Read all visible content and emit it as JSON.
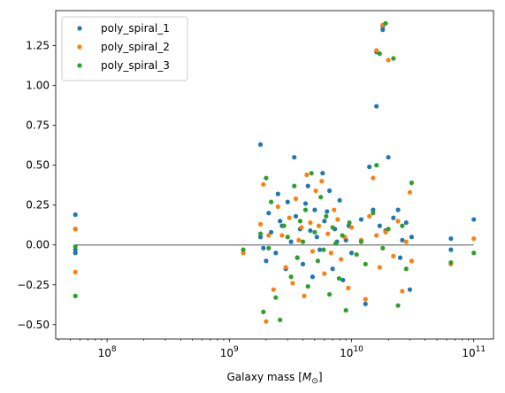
{
  "chart_data": {
    "type": "scatter",
    "title": "",
    "xlabel": "Galaxy mass [M_⊙]",
    "ylabel": "",
    "xscale": "log",
    "xlim": [
      38000000.0,
      145000000000.0
    ],
    "ylim": [
      -0.59,
      1.47
    ],
    "grid": false,
    "legend_position": "top-left",
    "reference_line": {
      "y": 0,
      "x_range": [
        55000000.0,
        100000000000.0
      ],
      "color": "#8c8c8c"
    },
    "x_ticks": [
      {
        "value": 100000000.0,
        "base": "10",
        "exp": "8"
      },
      {
        "value": 1000000000.0,
        "base": "10",
        "exp": "9"
      },
      {
        "value": 10000000000.0,
        "base": "10",
        "exp": "10"
      },
      {
        "value": 100000000000.0,
        "base": "10",
        "exp": "11"
      }
    ],
    "y_ticks": [
      {
        "value": -0.5,
        "label": "−0.50"
      },
      {
        "value": -0.25,
        "label": "−0.25"
      },
      {
        "value": 0.0,
        "label": "0.00"
      },
      {
        "value": 0.25,
        "label": "0.25"
      },
      {
        "value": 0.5,
        "label": "0.50"
      },
      {
        "value": 0.75,
        "label": "0.75"
      },
      {
        "value": 1.0,
        "label": "1.00"
      },
      {
        "value": 1.25,
        "label": "1.25"
      }
    ],
    "series": [
      {
        "name": "poly_spiral_1",
        "color": "#1f77b4",
        "x": [
          55000000.0,
          55000000.0,
          55000000.0,
          55000000.0,
          1800000000.0,
          1800000000.0,
          1900000000.0,
          2000000000.0,
          2100000000.0,
          2200000000.0,
          2400000000.0,
          2500000000.0,
          2600000000.0,
          2700000000.0,
          2900000000.0,
          3000000000.0,
          3200000000.0,
          3400000000.0,
          3500000000.0,
          3600000000.0,
          3800000000.0,
          4000000000.0,
          4200000000.0,
          4400000000.0,
          4600000000.0,
          4800000000.0,
          5000000000.0,
          5200000000.0,
          5500000000.0,
          5800000000.0,
          6000000000.0,
          6300000000.0,
          6600000000.0,
          7000000000.0,
          7300000000.0,
          7600000000.0,
          8000000000.0,
          8500000000.0,
          9000000000.0,
          9500000000.0,
          10000000000.0,
          12000000000.0,
          13000000000.0,
          14000000000.0,
          15000000000.0,
          16000000000.0,
          16000000000.0,
          17000000000.0,
          18000000000.0,
          18000000000.0,
          19000000000.0,
          20000000000.0,
          22000000000.0,
          24000000000.0,
          25000000000.0,
          26000000000.0,
          28000000000.0,
          30000000000.0,
          31000000000.0,
          65000000000.0,
          65000000000.0,
          100000000000.0
        ],
        "y": [
          0.19,
          0.1,
          -0.03,
          -0.05,
          0.63,
          0.05,
          -0.02,
          -0.1,
          0.2,
          0.08,
          -0.05,
          0.32,
          0.15,
          0.12,
          -0.15,
          0.27,
          0.02,
          0.55,
          0.18,
          -0.08,
          0.1,
          -0.12,
          0.26,
          0.37,
          0.09,
          -0.2,
          0.22,
          0.05,
          -0.03,
          0.45,
          0.15,
          0.21,
          0.34,
          -0.15,
          0.1,
          0.02,
          0.28,
          -0.22,
          0.03,
          0.12,
          -0.05,
          0.16,
          -0.37,
          0.49,
          0.22,
          0.87,
          1.21,
          0.12,
          1.35,
          1.37,
          0.09,
          0.55,
          0.17,
          0.22,
          -0.08,
          0.03,
          0.14,
          -0.28,
          0.05,
          0.04,
          -0.03,
          0.16
        ]
      },
      {
        "name": "poly_spiral_2",
        "color": "#ff7f0e",
        "x": [
          55000000.0,
          55000000.0,
          1300000000.0,
          1800000000.0,
          1900000000.0,
          2000000000.0,
          2100000000.0,
          2300000000.0,
          2500000000.0,
          2700000000.0,
          2900000000.0,
          3100000000.0,
          3300000000.0,
          3500000000.0,
          3700000000.0,
          3900000000.0,
          4100000000.0,
          4300000000.0,
          4600000000.0,
          4800000000.0,
          5100000000.0,
          5400000000.0,
          5700000000.0,
          6000000000.0,
          6400000000.0,
          6800000000.0,
          7200000000.0,
          7700000000.0,
          8200000000.0,
          8800000000.0,
          9400000000.0,
          10000000000.0,
          12000000000.0,
          13000000000.0,
          14000000000.0,
          15000000000.0,
          16000000000.0,
          16000000000.0,
          17000000000.0,
          18000000000.0,
          19000000000.0,
          20000000000.0,
          22000000000.0,
          24000000000.0,
          26000000000.0,
          28000000000.0,
          30000000000.0,
          31000000000.0,
          65000000000.0,
          100000000000.0
        ],
        "y": [
          0.1,
          -0.17,
          -0.05,
          0.13,
          0.38,
          -0.48,
          0.06,
          -0.28,
          0.24,
          0.06,
          -0.14,
          0.17,
          -0.24,
          0.29,
          0.03,
          0.11,
          -0.32,
          0.44,
          0.14,
          -0.04,
          0.34,
          0.12,
          0.4,
          -0.18,
          0.07,
          -0.05,
          0.22,
          0.16,
          -0.09,
          0.05,
          -0.27,
          0.11,
          0.03,
          -0.34,
          0.18,
          0.42,
          1.22,
          0.06,
          -0.14,
          1.38,
          0.08,
          1.16,
          -0.07,
          0.15,
          -0.29,
          0.02,
          0.33,
          -0.1,
          -0.12,
          0.04
        ]
      },
      {
        "name": "poly_spiral_3",
        "color": "#2ca02c",
        "x": [
          55000000.0,
          55000000.0,
          1300000000.0,
          1800000000.0,
          1900000000.0,
          2000000000.0,
          2100000000.0,
          2200000000.0,
          2400000000.0,
          2600000000.0,
          2800000000.0,
          3000000000.0,
          3200000000.0,
          3400000000.0,
          3600000000.0,
          3800000000.0,
          4000000000.0,
          4200000000.0,
          4400000000.0,
          4700000000.0,
          5000000000.0,
          5300000000.0,
          5600000000.0,
          5900000000.0,
          6200000000.0,
          6600000000.0,
          7000000000.0,
          7400000000.0,
          7900000000.0,
          8400000000.0,
          9000000000.0,
          9600000000.0,
          11000000000.0,
          12000000000.0,
          13000000000.0,
          15000000000.0,
          16000000000.0,
          17000000000.0,
          18000000000.0,
          19000000000.0,
          20000000000.0,
          22000000000.0,
          24000000000.0,
          26000000000.0,
          28000000000.0,
          31000000000.0,
          65000000000.0,
          100000000000.0
        ],
        "y": [
          -0.01,
          -0.32,
          -0.03,
          0.07,
          -0.42,
          0.42,
          -0.02,
          0.27,
          -0.33,
          -0.47,
          0.12,
          0.05,
          -0.2,
          0.37,
          -0.08,
          0.15,
          0.02,
          0.22,
          -0.26,
          0.45,
          0.08,
          -0.1,
          0.3,
          -0.03,
          0.18,
          -0.31,
          0.11,
          0.01,
          -0.21,
          0.06,
          -0.41,
          0.14,
          -0.06,
          0.02,
          -0.12,
          0.2,
          0.5,
          1.2,
          -0.02,
          1.39,
          0.1,
          1.17,
          -0.38,
          0.12,
          -0.15,
          0.39,
          -0.11,
          -0.05
        ]
      }
    ]
  }
}
